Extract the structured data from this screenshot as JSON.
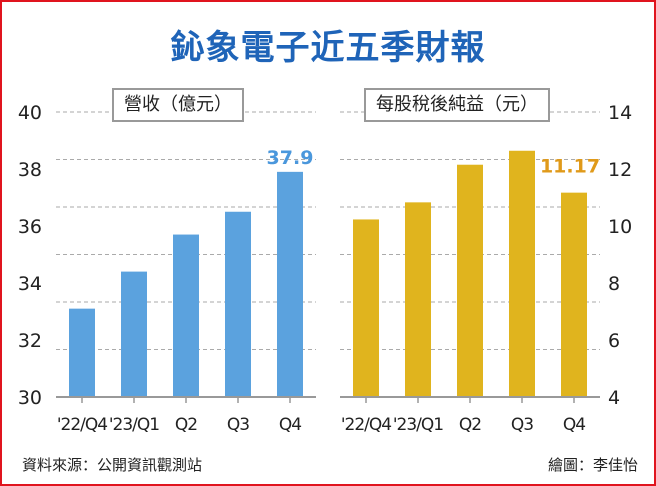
{
  "title": "鈊象電子近五季財報",
  "source": "資料來源：公開資訊觀測站",
  "credit": "繪圖：李佳怡",
  "chart_data": [
    {
      "type": "bar",
      "title": "營收（億元）",
      "categories": [
        "'22/Q4",
        "'23/Q1",
        "Q2",
        "Q3",
        "Q4"
      ],
      "values": [
        33.1,
        34.4,
        35.7,
        36.5,
        37.9
      ],
      "data_labels": {
        "Q4": "37.9"
      },
      "ylim": [
        30,
        40
      ],
      "yticks": [
        30,
        32,
        34,
        36,
        38,
        40
      ],
      "yaxis_side": "left",
      "grid": true,
      "color": "#5ba2de",
      "label_color": "#4a97dc"
    },
    {
      "type": "bar",
      "title": "每股稅後純益（元）",
      "categories": [
        "'22/Q4",
        "'23/Q1",
        "Q2",
        "Q3",
        "Q4"
      ],
      "values": [
        10.23,
        10.83,
        12.15,
        12.64,
        11.17
      ],
      "data_labels": {
        "Q4": "11.17"
      },
      "ylim": [
        4,
        14
      ],
      "yticks": [
        4,
        6,
        8,
        10,
        12,
        14
      ],
      "yaxis_side": "right",
      "grid": true,
      "color": "#e0b41e",
      "label_color": "#e09a1a"
    }
  ]
}
